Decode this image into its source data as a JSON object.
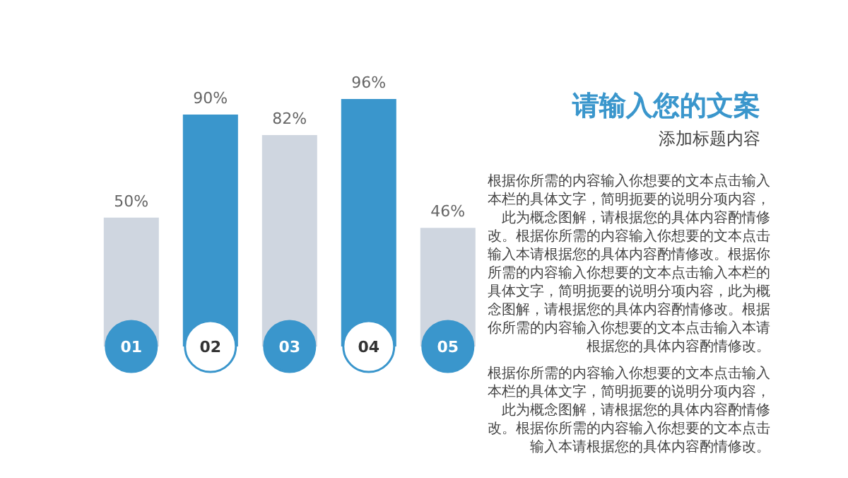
{
  "chart_data": {
    "type": "bar",
    "title": "请输入您的文案",
    "subtitle": "添加标题内容",
    "categories": [
      "01",
      "02",
      "03",
      "04",
      "05"
    ],
    "values": [
      50,
      90,
      82,
      96,
      46
    ],
    "colors": [
      "#cfd6e0",
      "#3a96cc",
      "#cfd6e0",
      "#3a96cc",
      "#cfd6e0"
    ],
    "value_labels": [
      "50%",
      "90%",
      "82%",
      "96%",
      "46%"
    ],
    "annotations": [
      "根据你所需的内容输入你想要的文本点击输入本栏的具体文字，简明扼要的说明分项内容，此为概念图解，请根据您的具体内容酌情修改。根据你所需的内容输入你想要的文本点击输入本请根据您的具体内容酌情修改。根据你所需的内容输入你想要的文本点击输入本栏的具体文字，简明扼要的说明分项内容，此为概念图解，请根据您的具体内容酌情修改。根据你所需的内容输入你想要的文本点击输入本请根据您的具体内容酌情修改。",
      "根据你所需的内容输入你想要的文本点击输入本栏的具体文字，简明扼要的说明分项内容，此为概念图解，请根据您的具体内容酌情修改。根据你所需的内容输入你想要的文本点击输入本请根据您的具体内容酌情修改。"
    ]
  }
}
